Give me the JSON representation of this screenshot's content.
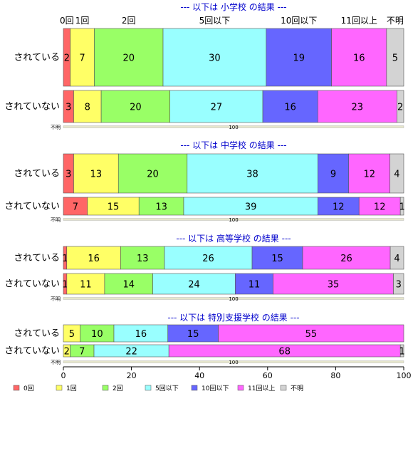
{
  "chart_data": {
    "type": "bar",
    "orientation": "horizontal",
    "stacked": true,
    "categories": [
      "0回",
      "1回",
      "2回",
      "5回以下",
      "10回以下",
      "11回以上",
      "不明"
    ],
    "colors": [
      "#ff6666",
      "#ffff66",
      "#99ff66",
      "#99ffff",
      "#6666ff",
      "#ff66ff",
      "#d3d3d3"
    ],
    "xlim": [
      0,
      100
    ],
    "xticks": [
      0,
      20,
      40,
      60,
      80,
      100
    ],
    "grid": false,
    "legend_position": "bottom",
    "aux_bar": {
      "left_label": "不明",
      "center_label": "100"
    },
    "panels": [
      {
        "title": "--- 以下は 小学校 の結果 ---",
        "show_category_headers": true,
        "rows": [
          {
            "label": "されている",
            "values": [
              2,
              7,
              20,
              30,
              19,
              16,
              5
            ]
          },
          {
            "label": "されていない",
            "values": [
              3,
              8,
              20,
              27,
              16,
              23,
              2
            ]
          }
        ]
      },
      {
        "title": "--- 以下は 中学校 の結果 ---",
        "rows": [
          {
            "label": "されている",
            "values": [
              3,
              13,
              20,
              38,
              9,
              12,
              4
            ]
          },
          {
            "label": "されていない",
            "values": [
              7,
              15,
              13,
              39,
              12,
              12,
              1
            ]
          }
        ]
      },
      {
        "title": "--- 以下は 高等学校 の結果 ---",
        "rows": [
          {
            "label": "されている",
            "values": [
              1,
              16,
              13,
              26,
              15,
              26,
              4
            ]
          },
          {
            "label": "されていない",
            "values": [
              1,
              11,
              14,
              24,
              11,
              35,
              3
            ]
          }
        ]
      },
      {
        "title": "--- 以下は 特別支援学校 の結果 ---",
        "rows": [
          {
            "label": "されている",
            "values": [
              0,
              5,
              10,
              16,
              15,
              55,
              0
            ]
          },
          {
            "label": "されていない",
            "values": [
              0,
              2,
              7,
              22,
              0,
              68,
              1
            ]
          }
        ]
      }
    ]
  }
}
